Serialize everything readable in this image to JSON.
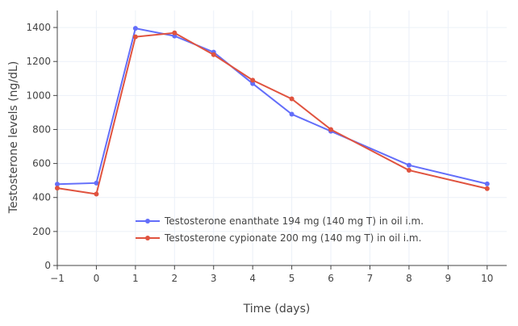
{
  "chart_data": {
    "type": "line",
    "title": "",
    "xlabel": "Time (days)",
    "ylabel": "Testosterone levels (ng/dL)",
    "xlim": [
      -1,
      10.5
    ],
    "ylim": [
      0,
      1500
    ],
    "xticks": [
      -1,
      0,
      1,
      2,
      3,
      4,
      5,
      6,
      7,
      8,
      9,
      10
    ],
    "xtick_labels": [
      "−1",
      "0",
      "1",
      "2",
      "3",
      "4",
      "5",
      "6",
      "7",
      "8",
      "9",
      "10"
    ],
    "yticks": [
      0,
      200,
      400,
      600,
      800,
      1000,
      1200,
      1400
    ],
    "ytick_labels": [
      "0",
      "200",
      "400",
      "600",
      "800",
      "1000",
      "1200",
      "1400"
    ],
    "grid": true,
    "legend_placement": "bottom-center",
    "series": [
      {
        "name": "Testosterone enanthate 194 mg (140 mg T) in oil i.m.",
        "color": "#636efa",
        "x": [
          -1,
          0,
          1,
          2,
          3,
          4,
          5,
          6,
          8,
          10
        ],
        "y": [
          478,
          485,
          1395,
          1350,
          1255,
          1070,
          890,
          790,
          590,
          480
        ]
      },
      {
        "name": "Testosterone cypionate 200 mg (140 mg T) in oil i.m.",
        "color": "#e0533f",
        "x": [
          -1,
          0,
          1,
          2,
          3,
          4,
          5,
          6,
          8,
          10
        ],
        "y": [
          455,
          420,
          1345,
          1368,
          1240,
          1090,
          980,
          800,
          560,
          452
        ]
      }
    ]
  }
}
